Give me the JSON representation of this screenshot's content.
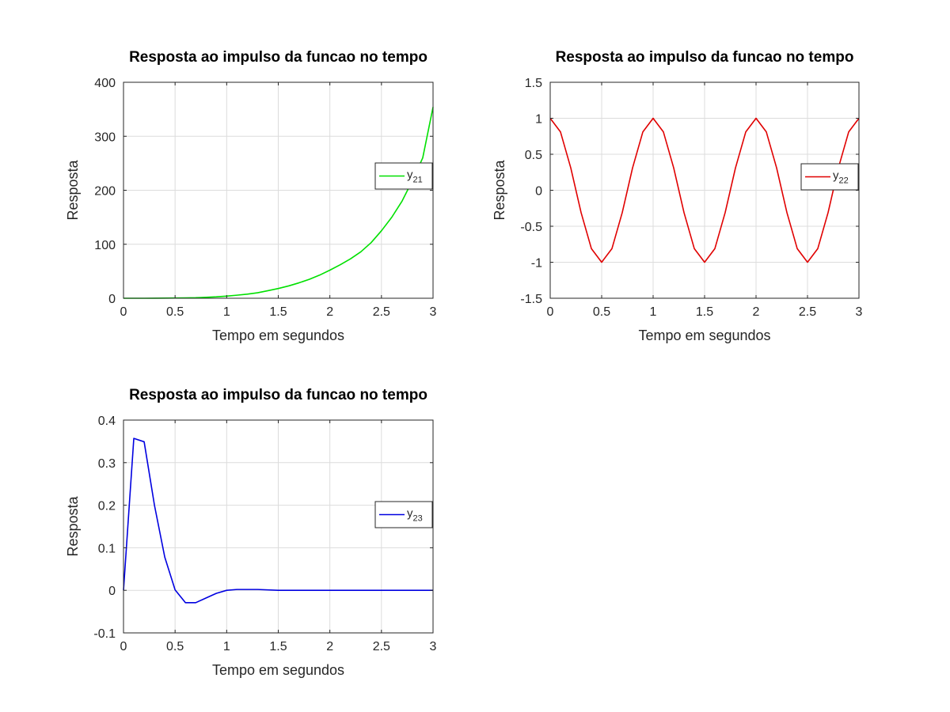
{
  "chart_data": [
    {
      "type": "line",
      "title": "Resposta ao impulso da funcao no tempo",
      "xlabel": "Tempo em segundos",
      "ylabel": "Resposta",
      "xlim": [
        0,
        3
      ],
      "ylim": [
        0,
        400
      ],
      "xticks": [
        0,
        0.5,
        1,
        1.5,
        2,
        2.5,
        3
      ],
      "xtick_labels": [
        "0",
        "0.5",
        "1",
        "1.5",
        "2",
        "2.5",
        "3"
      ],
      "yticks": [
        0,
        100,
        200,
        300,
        400
      ],
      "ytick_labels": [
        "0",
        "100",
        "200",
        "300",
        "400"
      ],
      "grid": true,
      "legend_position": "right",
      "series": [
        {
          "name": "y21",
          "legend_base": "y",
          "legend_sub": "21",
          "color": "#00e000",
          "x": [
            0,
            0.1,
            0.2,
            0.3,
            0.4,
            0.5,
            0.6,
            0.7,
            0.8,
            0.9,
            1.0,
            1.1,
            1.2,
            1.3,
            1.4,
            1.5,
            1.6,
            1.7,
            1.8,
            1.9,
            2.0,
            2.1,
            2.2,
            2.3,
            2.4,
            2.5,
            2.6,
            2.7,
            2.8,
            2.9,
            3.0
          ],
          "y": [
            0,
            0.0,
            0.0,
            0.1,
            0.3,
            0.5,
            0.7,
            1.0,
            1.8,
            2.6,
            4.0,
            5.7,
            7.6,
            10.2,
            14.0,
            18.0,
            22.8,
            28.5,
            35.0,
            42.8,
            52.0,
            62.0,
            73.0,
            86.0,
            103.0,
            125.0,
            150.0,
            180.0,
            218.0,
            260.0,
            354.0
          ]
        }
      ]
    },
    {
      "type": "line",
      "title": "Resposta ao impulso da funcao no tempo",
      "xlabel": "Tempo em segundos",
      "ylabel": "Resposta",
      "xlim": [
        0,
        3
      ],
      "ylim": [
        -1.5,
        1.5
      ],
      "xticks": [
        0,
        0.5,
        1,
        1.5,
        2,
        2.5,
        3
      ],
      "xtick_labels": [
        "0",
        "0.5",
        "1",
        "1.5",
        "2",
        "2.5",
        "3"
      ],
      "yticks": [
        -1.5,
        -1,
        -0.5,
        0,
        0.5,
        1,
        1.5
      ],
      "ytick_labels": [
        "-1.5",
        "-1",
        "-0.5",
        "0",
        "0.5",
        "1",
        "1.5"
      ],
      "grid": true,
      "legend_position": "right",
      "series": [
        {
          "name": "y22",
          "legend_base": "y",
          "legend_sub": "22",
          "color": "#e00000",
          "x": [
            0,
            0.1,
            0.2,
            0.3,
            0.4,
            0.5,
            0.6,
            0.7,
            0.8,
            0.9,
            1.0,
            1.1,
            1.2,
            1.3,
            1.4,
            1.5,
            1.6,
            1.7,
            1.8,
            1.9,
            2.0,
            2.1,
            2.2,
            2.3,
            2.4,
            2.5,
            2.6,
            2.7,
            2.8,
            2.9,
            3.0
          ],
          "y": [
            1,
            0.81,
            0.31,
            -0.31,
            -0.81,
            -1,
            -0.81,
            -0.31,
            0.31,
            0.81,
            1,
            0.81,
            0.31,
            -0.31,
            -0.81,
            -1,
            -0.81,
            -0.31,
            0.31,
            0.81,
            1,
            0.81,
            0.31,
            -0.31,
            -0.81,
            -1,
            -0.81,
            -0.31,
            0.31,
            0.81,
            1
          ]
        }
      ]
    },
    {
      "type": "line",
      "title": "Resposta ao impulso da funcao no tempo",
      "xlabel": "Tempo em segundos",
      "ylabel": "Resposta",
      "xlim": [
        0,
        3
      ],
      "ylim": [
        -0.1,
        0.4
      ],
      "xticks": [
        0,
        0.5,
        1,
        1.5,
        2,
        2.5,
        3
      ],
      "xtick_labels": [
        "0",
        "0.5",
        "1",
        "1.5",
        "2",
        "2.5",
        "3"
      ],
      "yticks": [
        -0.1,
        0,
        0.1,
        0.2,
        0.3,
        0.4
      ],
      "ytick_labels": [
        "-0.1",
        "0",
        "0.1",
        "0.2",
        "0.3",
        "0.4"
      ],
      "grid": true,
      "legend_position": "right",
      "series": [
        {
          "name": "y23",
          "legend_base": "y",
          "legend_sub": "23",
          "color": "#0000e0",
          "x": [
            0,
            0.1,
            0.2,
            0.3,
            0.4,
            0.5,
            0.6,
            0.7,
            0.8,
            0.9,
            1.0,
            1.1,
            1.2,
            1.3,
            1.5,
            2.0,
            2.5,
            3.0
          ],
          "y": [
            0,
            0.357,
            0.349,
            0.2,
            0.078,
            0.001,
            -0.029,
            -0.029,
            -0.018,
            -0.007,
            0.0,
            0.002,
            0.002,
            0.002,
            0.0,
            0.0,
            0.0,
            0.0
          ]
        }
      ]
    }
  ]
}
